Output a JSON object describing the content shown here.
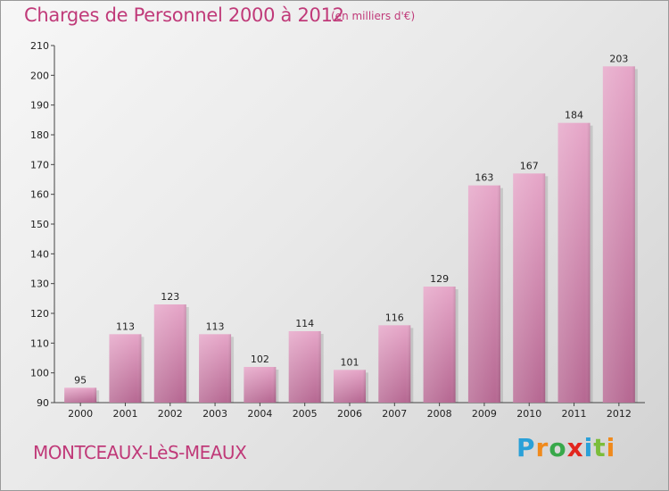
{
  "title": "Charges de Personnel 2000 à 2012",
  "subtitle": "(en milliers d'€)",
  "commune": "MONTCEAUX-LèS-MEAUX",
  "logo": {
    "letters": [
      "P",
      "r",
      "o",
      "x",
      "i",
      "t",
      "i"
    ],
    "colors": [
      "#2aa0d8",
      "#f08a1c",
      "#38a84a",
      "#e2261e",
      "#2aa0d8",
      "#7bbd3a",
      "#f08a1c"
    ]
  },
  "colors": {
    "bar": "#d98cb4",
    "bar_dark": "#b8628f",
    "accent": "#c03a79"
  },
  "chart_data": {
    "type": "bar",
    "title": "Charges de Personnel 2000 à 2012",
    "subtitle": "(en milliers d'€)",
    "categories": [
      "2000",
      "2001",
      "2002",
      "2003",
      "2004",
      "2005",
      "2006",
      "2007",
      "2008",
      "2009",
      "2010",
      "2011",
      "2012"
    ],
    "values": [
      95,
      113,
      123,
      113,
      102,
      114,
      101,
      116,
      129,
      163,
      167,
      184,
      203
    ],
    "ylim": [
      90,
      210
    ],
    "yticks": [
      90,
      100,
      110,
      120,
      130,
      140,
      150,
      160,
      170,
      180,
      190,
      200,
      210
    ],
    "grid": false,
    "legend": "none"
  }
}
